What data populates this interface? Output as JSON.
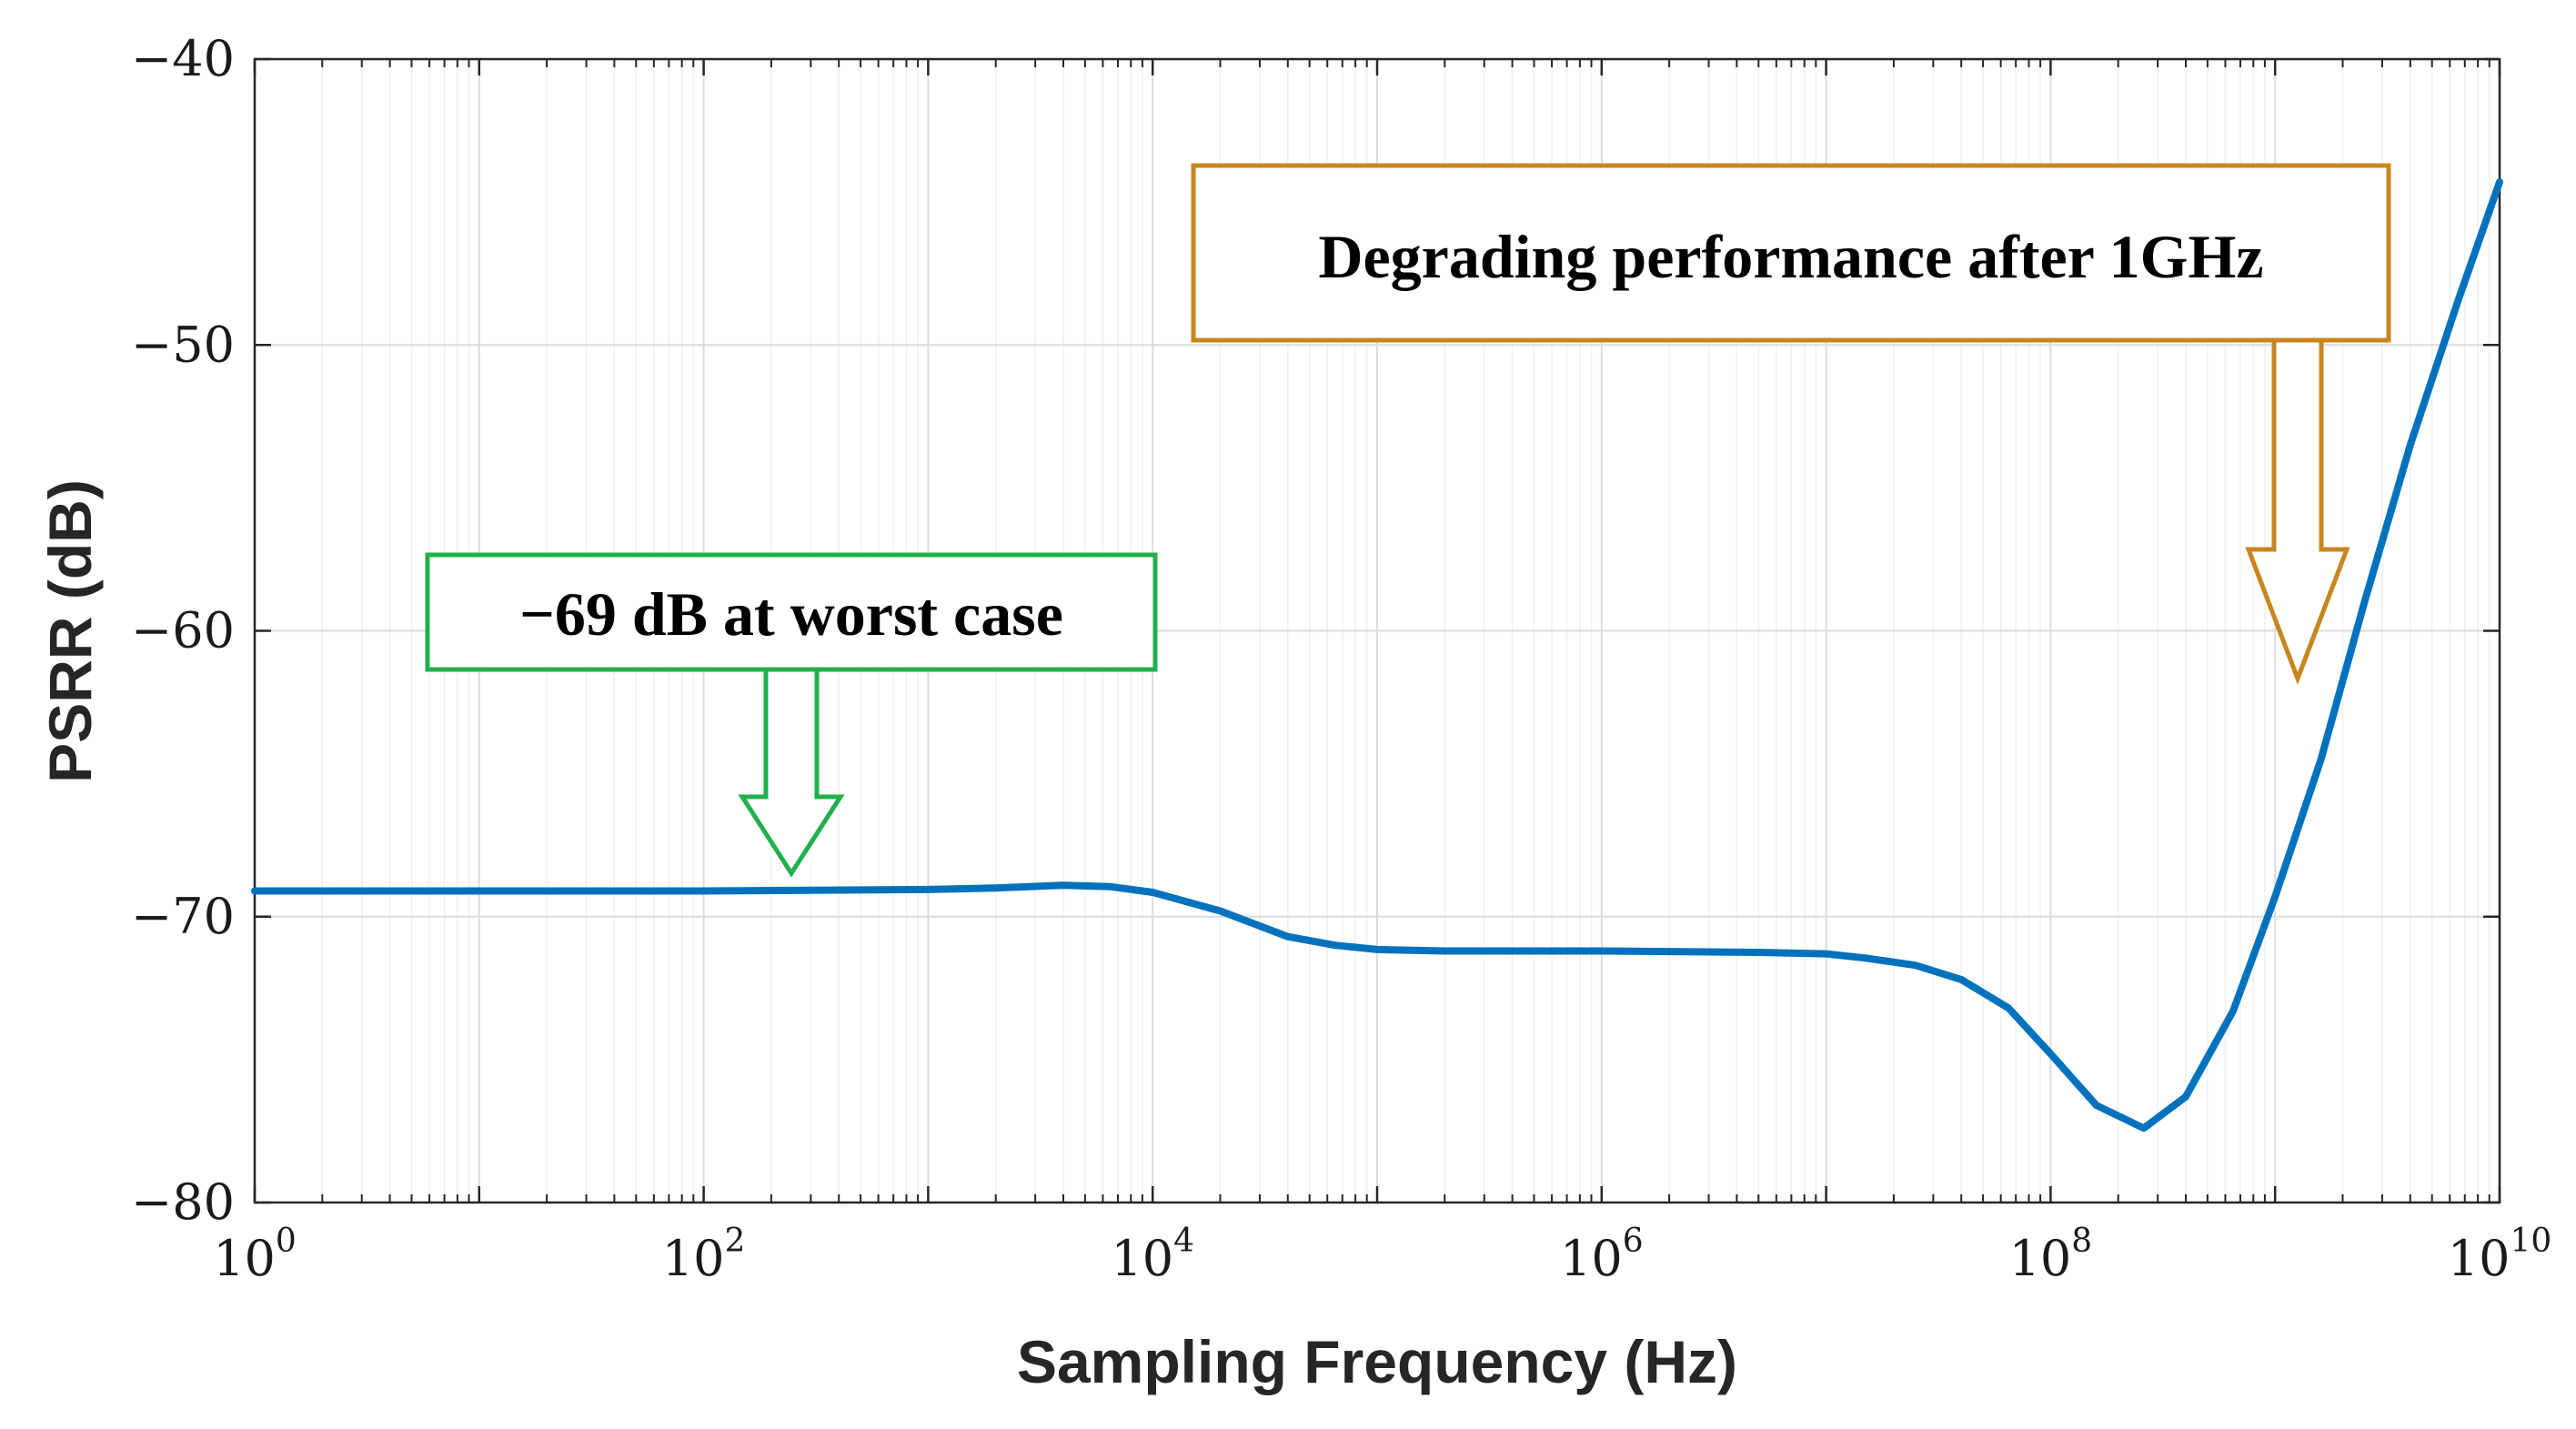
{
  "chart_data": {
    "type": "line",
    "title": "",
    "xlabel": "Sampling Frequency (Hz)",
    "ylabel": "PSRR (dB)",
    "xscale": "log",
    "xlim": [
      1,
      10000000000
    ],
    "ylim": [
      -80,
      -40
    ],
    "grid": true,
    "x_ticks": [
      {
        "base": "10",
        "exp": "0",
        "value": 1
      },
      {
        "base": "10",
        "exp": "2",
        "value": 100
      },
      {
        "base": "10",
        "exp": "4",
        "value": 10000
      },
      {
        "base": "10",
        "exp": "6",
        "value": 1000000
      },
      {
        "base": "10",
        "exp": "8",
        "value": 100000000
      },
      {
        "base": "10",
        "exp": "10",
        "value": 10000000000
      }
    ],
    "y_ticks": [
      {
        "label": "−40",
        "value": -40
      },
      {
        "label": "−50",
        "value": -50
      },
      {
        "label": "−60",
        "value": -60
      },
      {
        "label": "−70",
        "value": -70
      },
      {
        "label": "−80",
        "value": -80
      }
    ],
    "series": [
      {
        "name": "PSRR",
        "color": "#0072BD",
        "x": [
          1,
          10,
          100,
          1000,
          2000,
          4000,
          6500,
          10000,
          20000,
          40000,
          65000,
          100000,
          200000,
          1000000,
          5000000,
          10000000,
          15000000,
          25000000,
          40000000,
          65000000,
          100000000,
          160000000,
          260000000,
          400000000,
          650000000,
          1000000000,
          1600000000,
          2500000000,
          4000000000,
          6500000000,
          10000000000
        ],
        "y": [
          -69.1,
          -69.1,
          -69.1,
          -69.05,
          -69.0,
          -68.9,
          -68.95,
          -69.15,
          -69.8,
          -70.7,
          -71.0,
          -71.15,
          -71.2,
          -71.2,
          -71.25,
          -71.3,
          -71.45,
          -71.7,
          -72.2,
          -73.2,
          -74.8,
          -76.6,
          -77.4,
          -76.3,
          -73.3,
          -69.3,
          -64.5,
          -59.0,
          -53.5,
          -48.5,
          -44.3
        ]
      }
    ],
    "annotations": [
      {
        "text": "−69 dB at worst case",
        "color": "#22B04C",
        "arrow_points_to": {
          "x": 250,
          "y": -69.1
        }
      },
      {
        "text": "Degrading performance after 1GHz",
        "color": "#C7861E",
        "arrow_points_to": {
          "x": 1200000000,
          "y": -61.6
        }
      }
    ]
  }
}
